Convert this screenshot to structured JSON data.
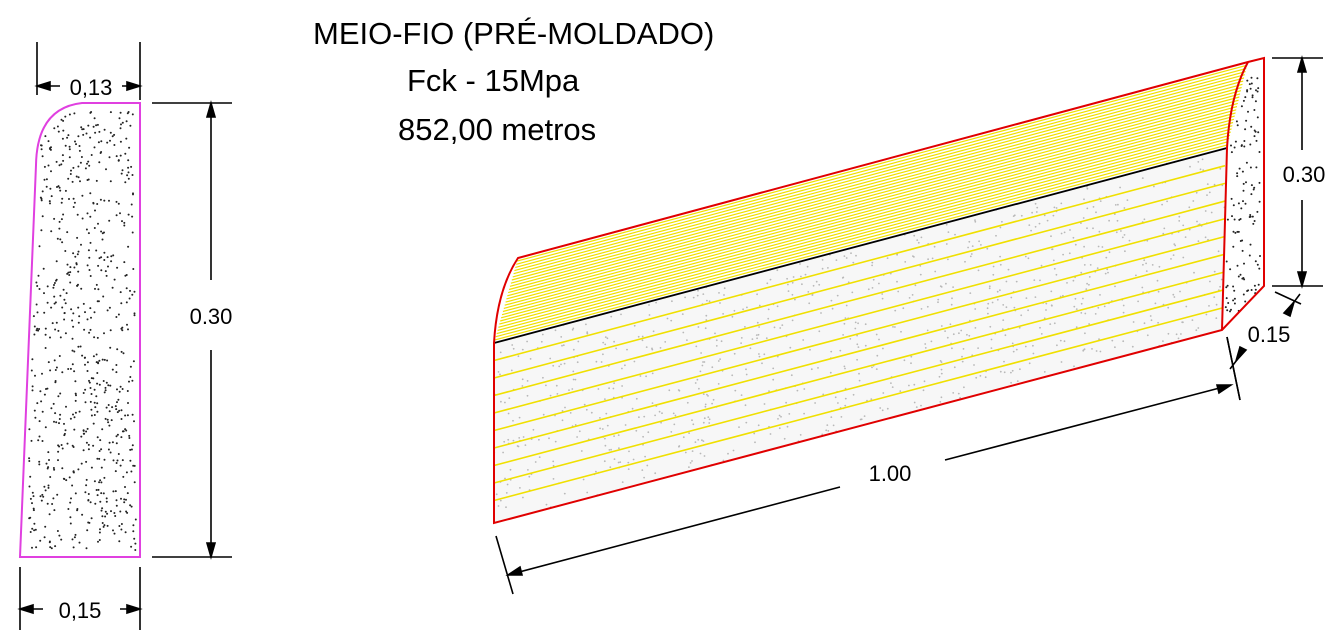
{
  "header": {
    "title": "MEIO-FIO (PRÉ-MOLDADO)",
    "fck": "Fck - 15Mpa",
    "length": "852,00 metros"
  },
  "section": {
    "top_width": "0,13",
    "bottom_width": "0,15",
    "height": "0.30"
  },
  "isometric": {
    "height": "0.30",
    "width": "0.15",
    "length": "1.00"
  },
  "colors": {
    "section_outline": "#e040e0",
    "iso_outline": "#e00000",
    "hatch": "#f0e000",
    "dimension": "#000000",
    "concrete_dots": "#222222",
    "face_dots": "#b8b8b8"
  }
}
